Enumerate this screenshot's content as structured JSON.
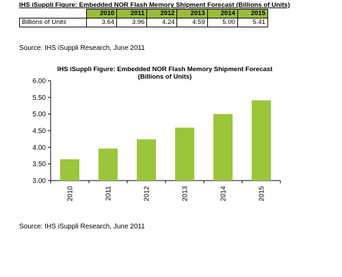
{
  "table": {
    "title": "IHS iSuppli Figure: Embedded NOR Flash Memory Shipment Forecast (Billions of Units)",
    "years": [
      "2010",
      "2011",
      "2012",
      "2013",
      "2014",
      "2015"
    ],
    "row_label": "Billions of Units",
    "values": [
      "3.64",
      "3.96",
      "4.24",
      "4.59",
      "5.00",
      "5.41"
    ]
  },
  "source_top": "Source: IHS iSuppli Research, June 2011",
  "source_bottom": "Source: IHS iSuppli Research, June 2011",
  "colors": {
    "bar": "#9bc53a",
    "header": "#9bbb3c"
  },
  "chart_data": {
    "type": "bar",
    "title": "IHS iSuppli  Figure: Embedded NOR Flash Memory Shipment Forecast",
    "subtitle": "(Billions of Units)",
    "categories": [
      "2010",
      "2011",
      "2012",
      "2013",
      "2014",
      "2015"
    ],
    "values": [
      3.64,
      3.96,
      4.24,
      4.59,
      5.0,
      5.41
    ],
    "ylim": [
      3.0,
      6.0
    ],
    "yticks": [
      "3.00",
      "3.50",
      "4.00",
      "4.50",
      "5.00",
      "5.50",
      "6.00"
    ],
    "xlabel": "",
    "ylabel": "",
    "grid": false,
    "legend": "none"
  }
}
